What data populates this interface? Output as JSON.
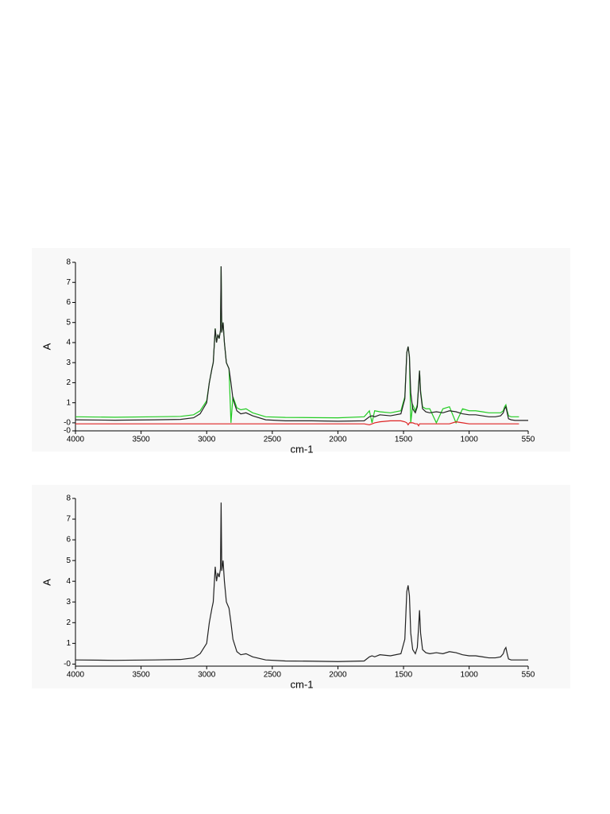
{
  "chart_data": [
    {
      "type": "line",
      "xlabel": "cm-1",
      "ylabel": "A",
      "xlim": [
        4000,
        550
      ],
      "xticks": [
        4000,
        3500,
        3000,
        2500,
        2000,
        1500,
        1000,
        550
      ],
      "ylim": [
        -0.4,
        8
      ],
      "yticks": [
        {
          "value": -0.4,
          "label": "-0"
        },
        {
          "value": 0,
          "label": "-0"
        },
        1,
        2,
        3,
        4,
        5,
        6,
        7,
        8
      ],
      "x": [
        4000,
        3700,
        3400,
        3200,
        3100,
        3050,
        3000,
        2980,
        2960,
        2950,
        2935,
        2925,
        2915,
        2905,
        2895,
        2890,
        2885,
        2875,
        2865,
        2850,
        2830,
        2815,
        2800,
        2770,
        2740,
        2700,
        2650,
        2550,
        2400,
        2200,
        2000,
        1800,
        1760,
        1740,
        1720,
        1680,
        1600,
        1520,
        1490,
        1475,
        1465,
        1455,
        1445,
        1430,
        1410,
        1395,
        1385,
        1378,
        1370,
        1355,
        1330,
        1300,
        1250,
        1200,
        1150,
        1100,
        1050,
        1000,
        950,
        900,
        850,
        800,
        760,
        740,
        730,
        720,
        710,
        700,
        680,
        650,
        620,
        600,
        550
      ],
      "series": [
        {
          "color": "#22cc22",
          "values": [
            0.3,
            0.28,
            0.3,
            0.32,
            0.4,
            0.6,
            1.1,
            2.0,
            2.7,
            3.0,
            4.7,
            4.0,
            4.4,
            4.2,
            4.6,
            7.8,
            4.5,
            5.0,
            4.0,
            3.0,
            2.7,
            0.0,
            1.3,
            0.75,
            0.65,
            0.7,
            0.5,
            0.3,
            0.27,
            0.26,
            0.25,
            0.3,
            0.6,
            0.0,
            0.6,
            0.55,
            0.5,
            0.6,
            1.3,
            3.5,
            3.8,
            3.3,
            0.0,
            0.9,
            0.6,
            0.9,
            1.9,
            2.6,
            1.6,
            0.8,
            0.7,
            0.7,
            0.0,
            0.7,
            0.8,
            0.0,
            0.7,
            0.6,
            0.6,
            0.55,
            0.5,
            0.5,
            0.5,
            0.6,
            0.8,
            0.9,
            0.6,
            0.35,
            0.3,
            0.3,
            0.3,
            null,
            null
          ]
        },
        {
          "color": "#dd2222",
          "values": [
            -0.05,
            -0.05,
            -0.05,
            -0.05,
            -0.05,
            -0.05,
            -0.05,
            -0.05,
            -0.05,
            -0.05,
            -0.05,
            -0.05,
            -0.05,
            -0.05,
            -0.05,
            -0.05,
            -0.05,
            -0.05,
            -0.05,
            -0.05,
            -0.05,
            -0.05,
            -0.05,
            -0.05,
            -0.05,
            -0.05,
            -0.05,
            -0.05,
            -0.05,
            -0.05,
            -0.05,
            -0.05,
            -0.1,
            -0.05,
            0.0,
            0.05,
            0.1,
            0.1,
            0.05,
            0.0,
            -0.1,
            0.0,
            0.0,
            0.0,
            -0.05,
            -0.05,
            -0.15,
            -0.05,
            -0.05,
            -0.05,
            -0.05,
            -0.05,
            -0.05,
            -0.05,
            -0.05,
            0.05,
            0.0,
            -0.05,
            -0.05,
            -0.05,
            -0.05,
            -0.05,
            -0.05,
            -0.05,
            -0.05,
            -0.05,
            -0.05,
            -0.05,
            -0.05,
            -0.05,
            -0.05,
            null,
            null
          ]
        },
        {
          "color": "#222222",
          "values": [
            0.15,
            0.13,
            0.15,
            0.17,
            0.25,
            0.45,
            1.0,
            2.0,
            2.7,
            3.0,
            4.7,
            4.0,
            4.4,
            4.2,
            4.6,
            7.8,
            4.5,
            5.0,
            4.0,
            3.0,
            2.7,
            2.0,
            1.2,
            0.6,
            0.45,
            0.5,
            0.35,
            0.15,
            0.1,
            0.1,
            0.08,
            0.1,
            0.3,
            0.35,
            0.3,
            0.4,
            0.35,
            0.45,
            1.2,
            3.5,
            3.8,
            3.3,
            1.5,
            0.7,
            0.5,
            0.8,
            1.8,
            2.6,
            1.5,
            0.7,
            0.55,
            0.5,
            0.55,
            0.5,
            0.6,
            0.55,
            0.45,
            0.4,
            0.4,
            0.35,
            0.3,
            0.3,
            0.35,
            0.5,
            0.7,
            0.8,
            0.5,
            0.2,
            0.15,
            0.12,
            0.12,
            0.12,
            0.12
          ]
        }
      ]
    },
    {
      "type": "line",
      "xlabel": "cm-1",
      "ylabel": "A",
      "xlim": [
        4000,
        550
      ],
      "xticks": [
        4000,
        3500,
        3000,
        2500,
        2000,
        1500,
        1000,
        550
      ],
      "ylim": [
        -0.1,
        8
      ],
      "yticks": [
        {
          "value": 0,
          "label": "-0"
        },
        1,
        2,
        3,
        4,
        5,
        6,
        7,
        8
      ],
      "x": [
        4000,
        3700,
        3400,
        3200,
        3100,
        3050,
        3000,
        2980,
        2960,
        2950,
        2935,
        2925,
        2915,
        2905,
        2895,
        2890,
        2885,
        2875,
        2865,
        2850,
        2830,
        2815,
        2800,
        2770,
        2740,
        2700,
        2650,
        2550,
        2400,
        2200,
        2000,
        1800,
        1760,
        1740,
        1720,
        1680,
        1600,
        1520,
        1490,
        1475,
        1465,
        1455,
        1445,
        1430,
        1410,
        1395,
        1385,
        1378,
        1370,
        1355,
        1330,
        1300,
        1250,
        1200,
        1150,
        1100,
        1050,
        1000,
        950,
        900,
        850,
        800,
        760,
        740,
        730,
        720,
        710,
        700,
        680,
        650,
        620,
        600,
        550
      ],
      "series": [
        {
          "color": "#222222",
          "values": [
            0.2,
            0.18,
            0.2,
            0.22,
            0.3,
            0.5,
            1.0,
            2.0,
            2.7,
            3.0,
            4.7,
            4.0,
            4.4,
            4.2,
            4.6,
            7.8,
            4.5,
            5.0,
            4.0,
            3.0,
            2.7,
            2.0,
            1.2,
            0.6,
            0.45,
            0.5,
            0.35,
            0.2,
            0.15,
            0.14,
            0.12,
            0.15,
            0.35,
            0.4,
            0.35,
            0.45,
            0.4,
            0.5,
            1.2,
            3.5,
            3.8,
            3.3,
            1.5,
            0.7,
            0.5,
            0.8,
            1.8,
            2.6,
            1.5,
            0.7,
            0.55,
            0.5,
            0.55,
            0.5,
            0.6,
            0.55,
            0.45,
            0.4,
            0.4,
            0.35,
            0.3,
            0.3,
            0.35,
            0.5,
            0.7,
            0.8,
            0.5,
            0.25,
            0.2,
            0.2,
            0.2,
            0.2,
            0.2
          ]
        }
      ]
    }
  ]
}
